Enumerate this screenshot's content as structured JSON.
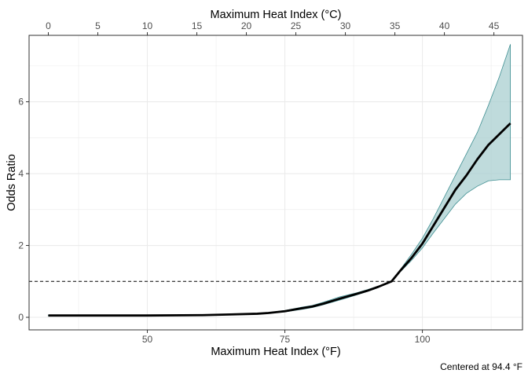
{
  "chart_data": {
    "type": "line",
    "title": "",
    "xlabel": "Maximum Heat Index (°F)",
    "x2label": "Maximum Heat Index (°C)",
    "ylabel": "Odds Ratio",
    "caption": "Centered at 94.4 °F",
    "xlim": [
      28.5,
      118.2
    ],
    "ylim": [
      -0.35,
      7.85
    ],
    "x_ticks": [
      50,
      75,
      100
    ],
    "x_tick_labels": [
      "50",
      "75",
      "100"
    ],
    "x2_ticks_c": [
      0,
      5,
      10,
      15,
      20,
      25,
      30,
      35,
      40,
      45
    ],
    "x2_tick_labels": [
      "0",
      "5",
      "10",
      "15",
      "20",
      "25",
      "30",
      "35",
      "40",
      "45"
    ],
    "y_ticks": [
      0,
      2,
      4,
      6
    ],
    "y_tick_labels": [
      "0",
      "2",
      "4",
      "6"
    ],
    "reference_line": 1.0,
    "grid": true,
    "series": [
      {
        "x": [
          32,
          40,
          50,
          60,
          65,
          70,
          72,
          75,
          78,
          80,
          82,
          85,
          88,
          90,
          92,
          94.4,
          96,
          98,
          100,
          102,
          104,
          106,
          108,
          110,
          112,
          114,
          116
        ],
        "y": [
          0.05,
          0.05,
          0.05,
          0.06,
          0.08,
          0.1,
          0.12,
          0.17,
          0.25,
          0.3,
          0.38,
          0.52,
          0.65,
          0.74,
          0.85,
          1.0,
          1.3,
          1.65,
          2.05,
          2.55,
          3.05,
          3.55,
          3.95,
          4.4,
          4.8,
          5.1,
          5.4
        ],
        "lower": [
          0.04,
          0.04,
          0.04,
          0.05,
          0.07,
          0.09,
          0.11,
          0.15,
          0.22,
          0.27,
          0.35,
          0.48,
          0.62,
          0.72,
          0.83,
          1.0,
          1.27,
          1.58,
          1.93,
          2.35,
          2.75,
          3.15,
          3.45,
          3.65,
          3.8,
          3.83,
          3.83
        ],
        "upper": [
          0.06,
          0.06,
          0.06,
          0.07,
          0.09,
          0.11,
          0.13,
          0.19,
          0.28,
          0.33,
          0.42,
          0.57,
          0.68,
          0.77,
          0.87,
          1.0,
          1.33,
          1.75,
          2.2,
          2.75,
          3.35,
          3.95,
          4.55,
          5.15,
          5.9,
          6.7,
          7.6
        ]
      }
    ],
    "colors": {
      "band_fill": "#a9cfd0",
      "band_edge": "#3f8f92",
      "line": "#000000",
      "grid": "#ebebeb",
      "border": "#333333",
      "reference": "#000000"
    }
  }
}
